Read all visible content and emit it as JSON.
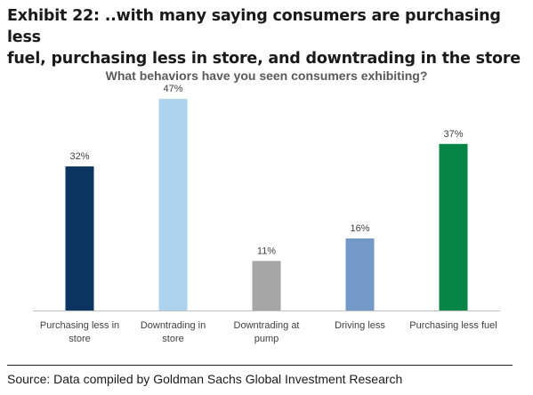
{
  "exhibit": {
    "title_line1": "Exhibit 22: ..with many saying consumers are purchasing less",
    "title_line2": "fuel, purchasing less in store, and downtrading in the store"
  },
  "source_text": "Source: Data compiled by Goldman Sachs Global Investment Research",
  "chart_data": {
    "type": "bar",
    "title": "What behaviors have you seen consumers exhibiting?",
    "categories": [
      [
        "Purchasing less in",
        "store"
      ],
      [
        "Downtrading in",
        "store"
      ],
      [
        "Downtrading at",
        "pump"
      ],
      [
        "Driving less"
      ],
      [
        "Purchasing less fuel"
      ]
    ],
    "values": [
      32,
      47,
      11,
      16,
      37
    ],
    "data_labels": [
      "32%",
      "47%",
      "11%",
      "16%",
      "37%"
    ],
    "bar_colors": [
      "#0b3461",
      "#add3ef",
      "#a6a6a6",
      "#7399c8",
      "#078547"
    ],
    "ylim": [
      0,
      50
    ],
    "axis_color": "#bfbfbf",
    "label_color": "#404040"
  }
}
